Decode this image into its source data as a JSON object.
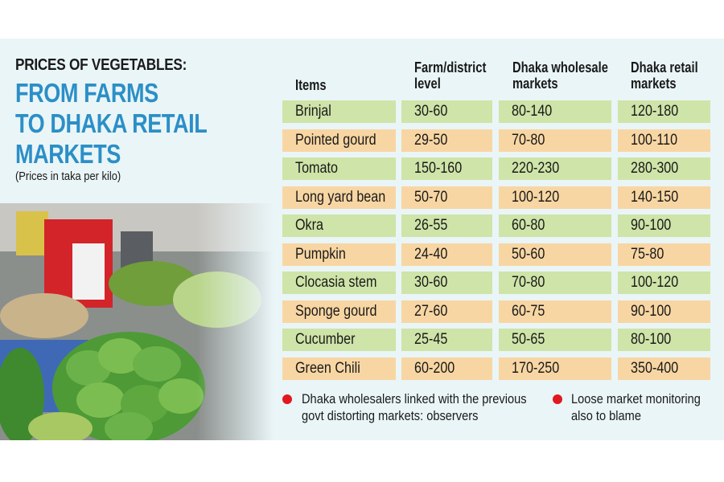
{
  "header": {
    "title_small": "PRICES OF VEGETABLES:",
    "title_big": [
      "FROM FARMS",
      "TO DHAKA RETAIL",
      "MARKETS"
    ],
    "unit_note": "(Prices in taka per kilo)"
  },
  "table": {
    "columns": [
      "Items",
      "Farm/district level",
      "Dhaka wholesale markets",
      "Dhaka retail markets"
    ],
    "rows": [
      {
        "item": "Brinjal",
        "farm": "30-60",
        "wholesale": "80-140",
        "retail": "120-180"
      },
      {
        "item": "Pointed gourd",
        "farm": "29-50",
        "wholesale": "70-80",
        "retail": "100-110"
      },
      {
        "item": "Tomato",
        "farm": "150-160",
        "wholesale": "220-230",
        "retail": "280-300"
      },
      {
        "item": "Long yard bean",
        "farm": "50-70",
        "wholesale": "100-120",
        "retail": "140-150"
      },
      {
        "item": "Okra",
        "farm": "26-55",
        "wholesale": "60-80",
        "retail": "90-100"
      },
      {
        "item": "Pumpkin",
        "farm": "24-40",
        "wholesale": "50-60",
        "retail": "75-80"
      },
      {
        "item": "Clocasia stem",
        "farm": "30-60",
        "wholesale": "70-80",
        "retail": "100-120"
      },
      {
        "item": "Sponge gourd",
        "farm": "27-60",
        "wholesale": "60-75",
        "retail": "90-100"
      },
      {
        "item": "Cucumber",
        "farm": "25-45",
        "wholesale": "50-65",
        "retail": "80-100"
      },
      {
        "item": "Green Chili",
        "farm": "60-200",
        "wholesale": "170-250",
        "retail": "350-400"
      }
    ]
  },
  "notes": [
    "Dhaka wholesalers linked with the previous govt distorting markets: observers",
    "Loose market monitoring also to blame"
  ],
  "colors": {
    "accent": "#2b8fc7",
    "row_green": "#cfe4a8",
    "row_orange": "#f8d6a3",
    "bullet": "#e0191f"
  }
}
